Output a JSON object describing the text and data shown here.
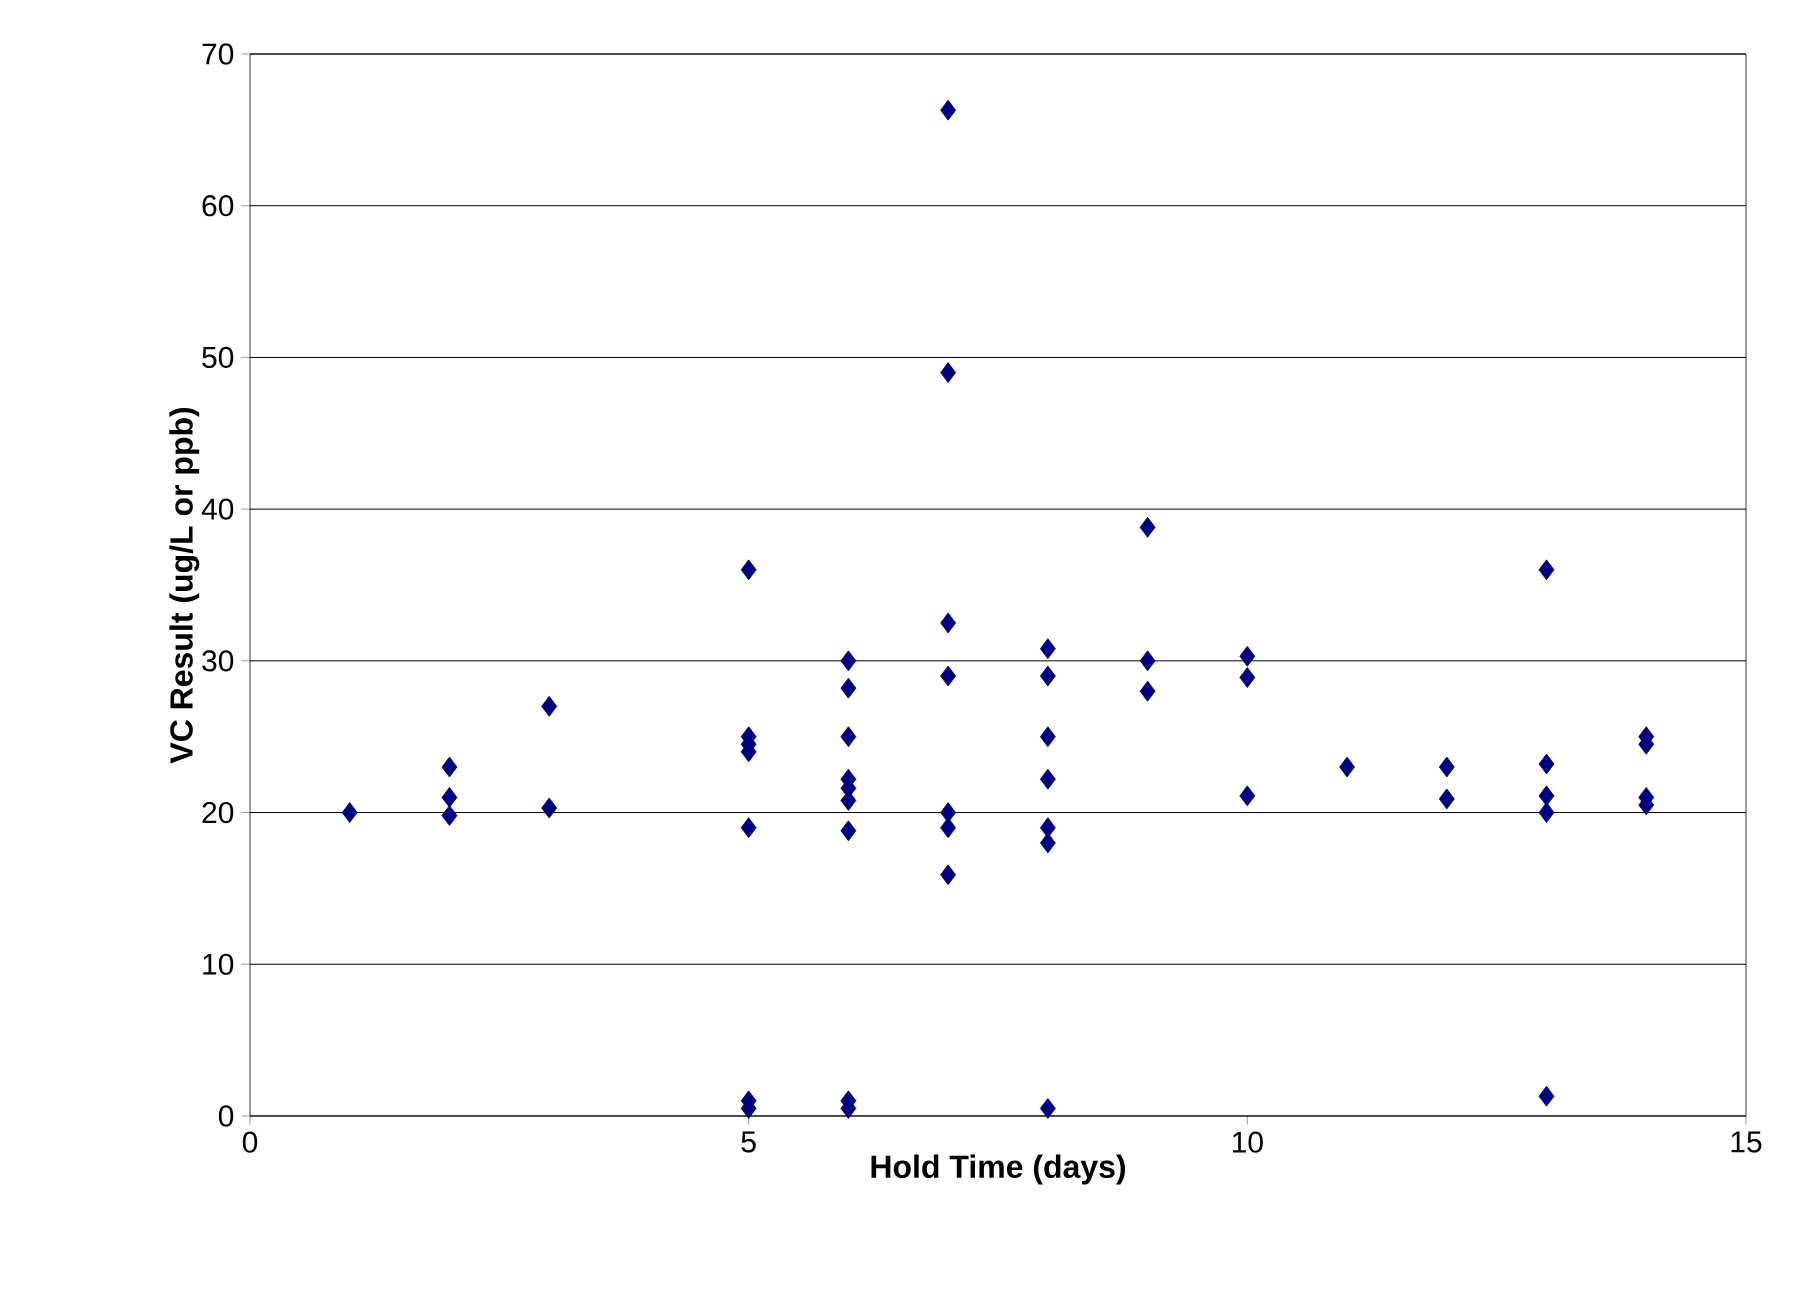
{
  "chart_data": {
    "type": "scatter",
    "xlabel": "Hold Time (days)",
    "ylabel": "VC Result (ug/L or ppb)",
    "xlim": [
      0,
      15
    ],
    "xticks": [
      0,
      5,
      10,
      15
    ],
    "ylim": [
      0,
      70
    ],
    "yticks": [
      0,
      10,
      20,
      30,
      40,
      50,
      60,
      70
    ],
    "grid": "y",
    "marker": "diamond",
    "series": [
      {
        "color": "#000080",
        "x": [
          1,
          2,
          2,
          2,
          3,
          3,
          5,
          5,
          5,
          5,
          5,
          5,
          5,
          6,
          6,
          6,
          6,
          6,
          6,
          6,
          6,
          6,
          7,
          7,
          7,
          7,
          7,
          7,
          7,
          8,
          8,
          8,
          8,
          8,
          8,
          8,
          9,
          9,
          9,
          10,
          10,
          10,
          11,
          12,
          12,
          13,
          13,
          13,
          13,
          13,
          14,
          14,
          14,
          14
        ],
        "values": [
          20,
          23,
          21,
          19.8,
          27,
          20.3,
          36,
          25,
          24.5,
          24,
          19,
          1,
          0.5,
          30,
          28.2,
          25,
          22.2,
          21.6,
          20.8,
          18.8,
          1,
          0.5,
          66.3,
          49,
          32.5,
          29,
          20,
          19,
          15.9,
          30.8,
          29,
          25,
          22.2,
          19,
          18,
          0.5,
          38.8,
          30,
          28,
          30.3,
          28.9,
          21.1,
          23,
          23,
          20.9,
          36,
          23.2,
          21.1,
          20,
          1.3,
          25,
          24.5,
          21,
          20.5
        ]
      }
    ]
  }
}
